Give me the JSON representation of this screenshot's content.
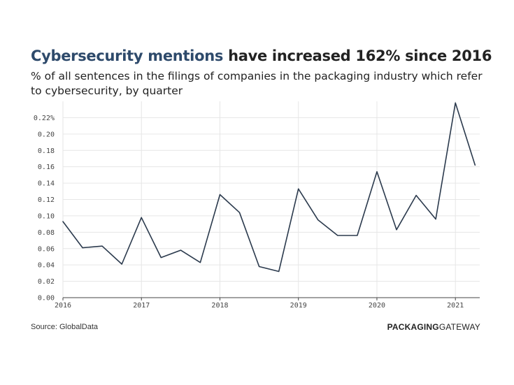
{
  "header": {
    "title_highlight": "Cybersecurity mentions",
    "title_rest": " have increased 162% since 2016",
    "subtitle": "% of all sentences in the filings of companies in the packaging industry which refer to cybersecurity, by quarter"
  },
  "footer": {
    "source": "Source: GlobalData",
    "brand_bold": "PACKAGING",
    "brand_light": "GATEWAY"
  },
  "colors": {
    "line": "#2b3a4d",
    "grid": "#e6e6e6",
    "axis": "#444444",
    "title_highlight": "#2e4a6b"
  },
  "chart_data": {
    "type": "line",
    "title": "Cybersecurity mentions have increased 162% since 2016",
    "xlabel": "",
    "ylabel": "",
    "ylim": [
      0,
      0.24
    ],
    "yticks": [
      0,
      0.02,
      0.04,
      0.06,
      0.08,
      0.1,
      0.12,
      0.14,
      0.16,
      0.18,
      0.2,
      0.22
    ],
    "ytick_labels": [
      "0.00",
      "0.02",
      "0.04",
      "0.06",
      "0.08",
      "0.10",
      "0.12",
      "0.14",
      "0.16",
      "0.18",
      "0.20",
      "0.22%"
    ],
    "xlim": [
      2016.0,
      2021.31
    ],
    "xticks": [
      2016,
      2017,
      2018,
      2019,
      2020,
      2021
    ],
    "xtick_labels": [
      "2016",
      "2017",
      "2018",
      "2019",
      "2020",
      "2021"
    ],
    "grid": true,
    "series": [
      {
        "name": "Cybersecurity mentions",
        "x": [
          2016.0,
          2016.25,
          2016.5,
          2016.75,
          2017.0,
          2017.25,
          2017.5,
          2017.75,
          2018.0,
          2018.25,
          2018.5,
          2018.75,
          2019.0,
          2019.25,
          2019.5,
          2019.75,
          2020.0,
          2020.25,
          2020.5,
          2020.75,
          2021.0,
          2021.25
        ],
        "values": [
          0.093,
          0.061,
          0.063,
          0.041,
          0.098,
          0.049,
          0.058,
          0.043,
          0.126,
          0.104,
          0.038,
          0.032,
          0.133,
          0.095,
          0.076,
          0.076,
          0.154,
          0.083,
          0.125,
          0.096,
          0.238,
          0.162
        ]
      }
    ]
  }
}
